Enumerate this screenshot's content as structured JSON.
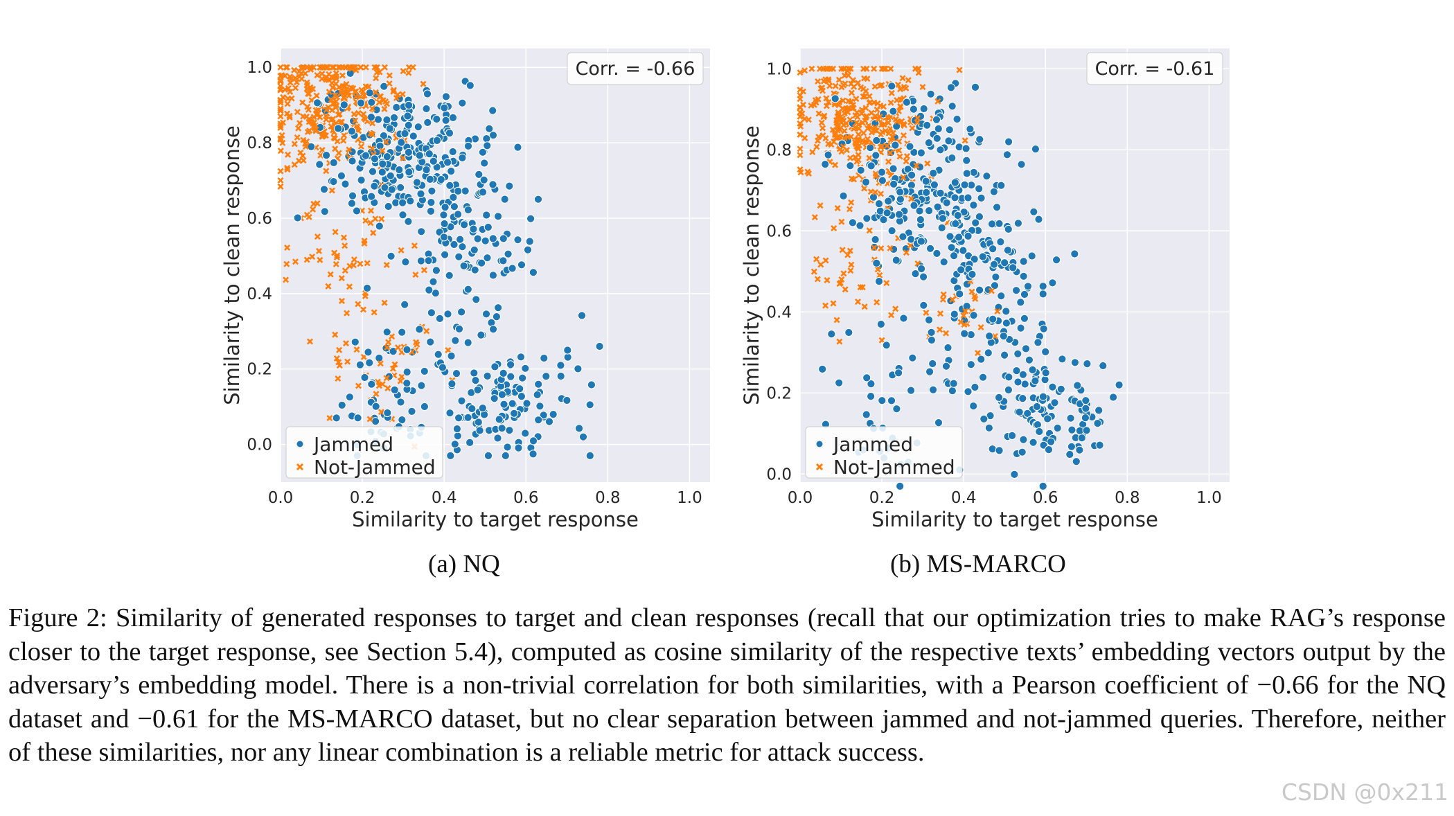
{
  "colors": {
    "jammed": "#1f77b4",
    "not_jammed": "#ff7f0e",
    "plot_bg": "#eaeaf2",
    "grid": "#ffffff"
  },
  "chart_data": [
    {
      "type": "scatter",
      "title": "",
      "subcaption": "(a) NQ",
      "xlabel": "Similarity to target response",
      "ylabel": "Similarity to clean response",
      "xlim": [
        0.0,
        1.05
      ],
      "ylim": [
        -0.1,
        1.05
      ],
      "xticks": [
        "0.0",
        "0.2",
        "0.4",
        "0.6",
        "0.8",
        "1.0"
      ],
      "yticks": [
        "0.0",
        "0.2",
        "0.4",
        "0.6",
        "0.8",
        "1.0"
      ],
      "annotation": "Corr. = -0.66",
      "legend_position": "lower-left",
      "series": [
        {
          "name": "Jammed",
          "marker": "circle",
          "seed": 11,
          "count": 520,
          "clusters": [
            [
              0.3,
              0.78,
              0.1,
              0.09,
              0.44
            ],
            [
              0.46,
              0.56,
              0.07,
              0.08,
              0.16
            ],
            [
              0.55,
              0.1,
              0.09,
              0.07,
              0.22
            ],
            [
              0.24,
              0.13,
              0.07,
              0.09,
              0.1
            ],
            [
              0.4,
              0.3,
              0.08,
              0.08,
              0.08
            ]
          ],
          "sample_points": [
            [
              0.52,
              0.82
            ],
            [
              0.78,
              0.26
            ],
            [
              0.74,
              0.02
            ],
            [
              0.63,
              0.65
            ],
            [
              0.34,
              0.03
            ]
          ]
        },
        {
          "name": "Not-Jammed",
          "marker": "x",
          "seed": 23,
          "count": 420,
          "clusters": [
            [
              0.12,
              0.9,
              0.08,
              0.08,
              0.8
            ],
            [
              0.15,
              0.5,
              0.07,
              0.1,
              0.1
            ],
            [
              0.25,
              0.2,
              0.08,
              0.08,
              0.1
            ]
          ],
          "sample_points": [
            [
              0.3,
              0.99
            ],
            [
              0.05,
              0.6
            ],
            [
              0.33,
              0.45
            ],
            [
              0.12,
              0.07
            ],
            [
              0.42,
              0.17
            ]
          ]
        }
      ]
    },
    {
      "type": "scatter",
      "title": "",
      "subcaption": "(b) MS-MARCO",
      "xlabel": "Similarity to target response",
      "ylabel": "Similarity to clean response",
      "xlim": [
        0.0,
        1.05
      ],
      "ylim": [
        -0.02,
        1.05
      ],
      "xticks": [
        "0.0",
        "0.2",
        "0.4",
        "0.6",
        "0.8",
        "1.0"
      ],
      "yticks": [
        "0.0",
        "0.2",
        "0.4",
        "0.6",
        "0.8",
        "1.0"
      ],
      "annotation": "Corr. = -0.61",
      "legend_position": "lower-left",
      "series": [
        {
          "name": "Jammed",
          "marker": "circle",
          "seed": 37,
          "count": 500,
          "clusters": [
            [
              0.3,
              0.72,
              0.1,
              0.1,
              0.46
            ],
            [
              0.45,
              0.52,
              0.08,
              0.08,
              0.16
            ],
            [
              0.6,
              0.16,
              0.07,
              0.07,
              0.2
            ],
            [
              0.22,
              0.18,
              0.09,
              0.1,
              0.1
            ],
            [
              0.45,
              0.33,
              0.08,
              0.07,
              0.08
            ]
          ],
          "sample_points": [
            [
              0.51,
              0.82
            ],
            [
              0.78,
              0.22
            ],
            [
              0.72,
              0.07
            ],
            [
              0.53,
              0.05
            ],
            [
              0.39,
              0.01
            ]
          ]
        },
        {
          "name": "Not-Jammed",
          "marker": "x",
          "seed": 41,
          "count": 400,
          "clusters": [
            [
              0.14,
              0.88,
              0.09,
              0.08,
              0.82
            ],
            [
              0.15,
              0.5,
              0.06,
              0.08,
              0.1
            ],
            [
              0.38,
              0.4,
              0.05,
              0.05,
              0.08
            ]
          ],
          "sample_points": [
            [
              0.29,
              0.99
            ],
            [
              0.04,
              0.53
            ],
            [
              0.09,
              0.38
            ],
            [
              0.36,
              0.62
            ],
            [
              0.2,
              0.33
            ]
          ]
        }
      ]
    }
  ],
  "caption": "Figure 2: Similarity of generated responses to target and clean responses (recall that our optimization tries to make RAG’s response closer to the target response, see Section 5.4), computed as cosine similarity of the respective texts’ embedding vectors output by the adversary’s embedding model. There is a non-trivial correlation for both similarities, with a Pearson coefficient of −0.66 for the NQ dataset and −0.61 for the MS-MARCO dataset, but no clear separation between jammed and not-jammed queries. Therefore, neither of these similarities, nor any linear combination is a reliable metric for attack success.",
  "watermark": "CSDN @0x211"
}
